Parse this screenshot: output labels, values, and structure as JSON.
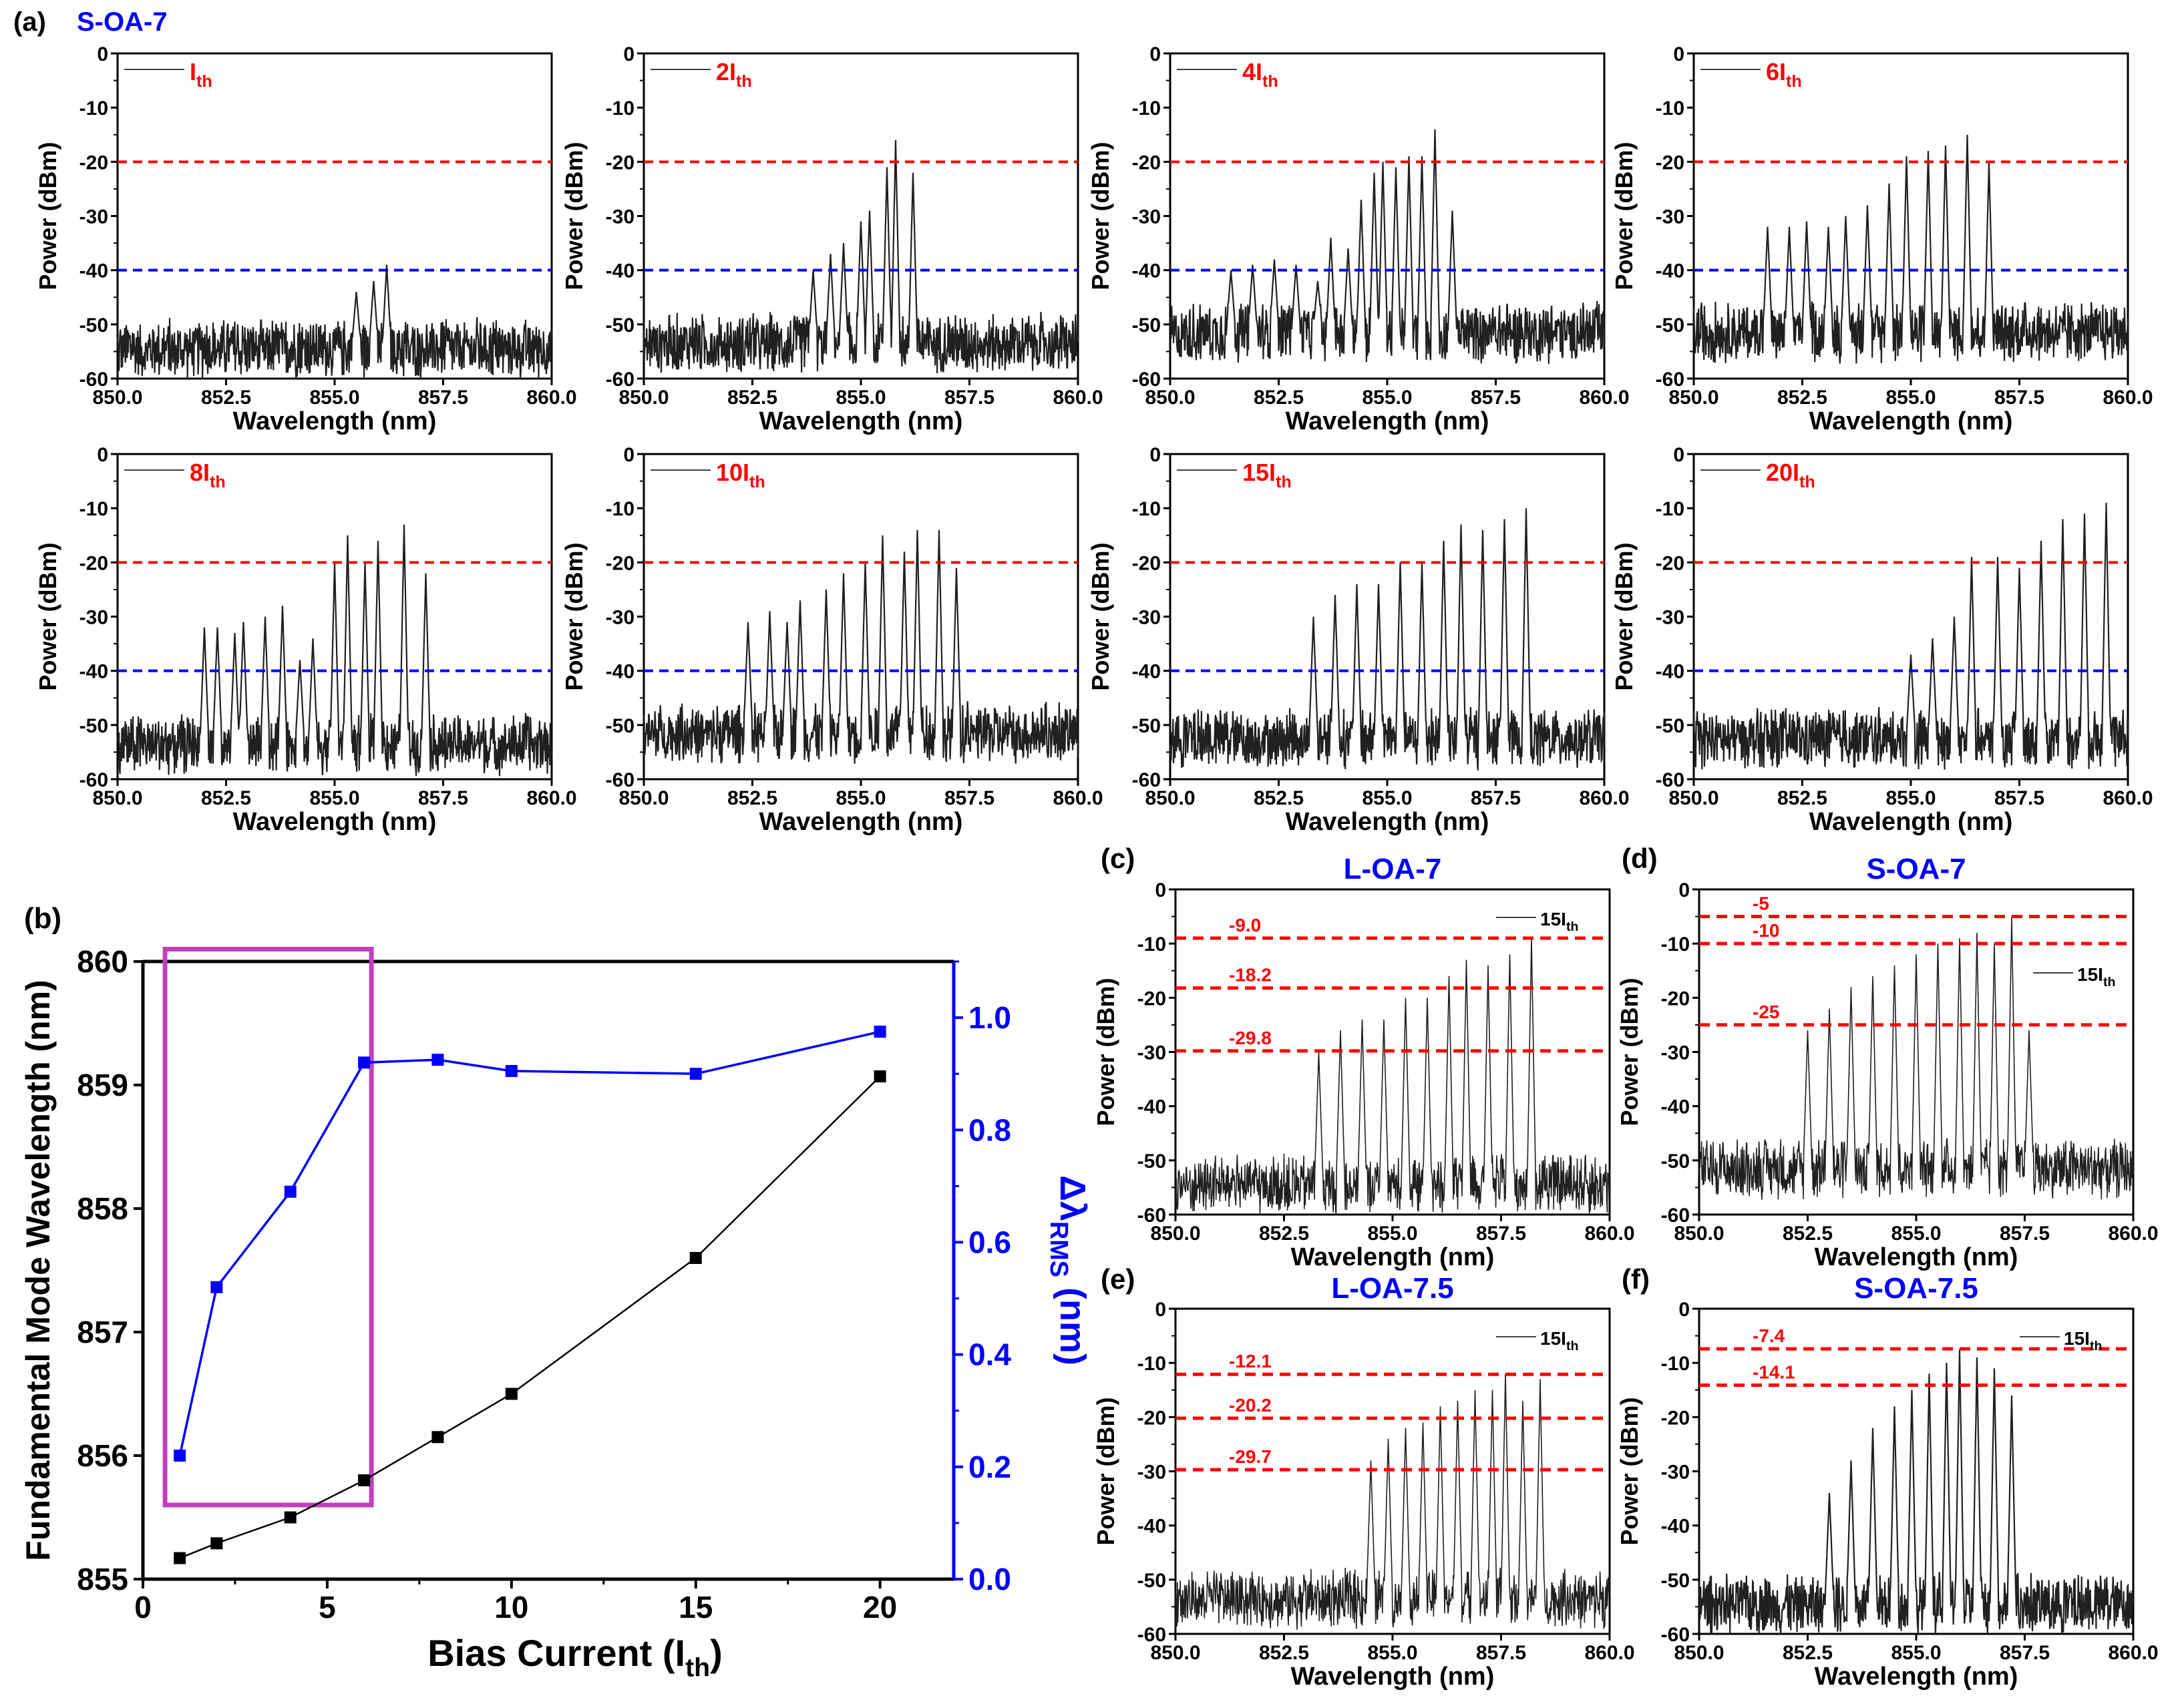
{
  "figure": {
    "colors": {
      "red": "#ff0000",
      "blue": "#0000ff",
      "black": "#000000",
      "magenta": "#c040c0",
      "trace": "#202020"
    },
    "spectrum_axes": {
      "xlabel": "Wavelength (nm)",
      "ylabel": "Power (dBm)",
      "xticks": [
        "850.0",
        "852.5",
        "855.0",
        "857.5",
        "860.0"
      ],
      "yticks": [
        "0",
        "-10",
        "-20",
        "-30",
        "-40",
        "-50",
        "-60"
      ],
      "xlim": [
        850,
        860
      ],
      "ylim": [
        -60,
        0
      ]
    }
  },
  "chart_data": [
    {
      "type": "line",
      "panel": "(a)",
      "sample": "S-OA-7",
      "subplots": [
        {
          "label_main": "I",
          "label_sub": "th",
          "series": "Ith",
          "noise_floor": -53,
          "modes": [
            [
              855.5,
              -44
            ],
            [
              855.9,
              -42
            ],
            [
              856.2,
              -39
            ]
          ],
          "ref_lines": [
            -20,
            -40
          ]
        },
        {
          "label_main": "2I",
          "label_sub": "th",
          "series": "2Ith",
          "noise_floor": -52,
          "modes": [
            [
              853.9,
              -40
            ],
            [
              854.3,
              -37
            ],
            [
              854.6,
              -35
            ],
            [
              855.0,
              -31
            ],
            [
              855.2,
              -29
            ],
            [
              855.6,
              -21
            ],
            [
              855.8,
              -16
            ],
            [
              856.2,
              -22
            ]
          ],
          "ref_lines": [
            -20,
            -40
          ]
        },
        {
          "label_main": "4I",
          "label_sub": "th",
          "series": "4Ith",
          "noise_floor": -50,
          "modes": [
            [
              851.4,
              -40
            ],
            [
              851.9,
              -39
            ],
            [
              852.4,
              -38
            ],
            [
              852.9,
              -39
            ],
            [
              853.4,
              -42
            ],
            [
              853.7,
              -34
            ],
            [
              854.1,
              -36
            ],
            [
              854.4,
              -27
            ],
            [
              854.7,
              -22
            ],
            [
              854.9,
              -20
            ],
            [
              855.2,
              -21
            ],
            [
              855.5,
              -19
            ],
            [
              855.8,
              -19
            ],
            [
              856.1,
              -14
            ],
            [
              856.5,
              -29
            ]
          ],
          "ref_lines": [
            -20,
            -40
          ]
        },
        {
          "label_main": "6I",
          "label_sub": "th",
          "series": "6Ith",
          "noise_floor": -50,
          "modes": [
            [
              851.7,
              -32
            ],
            [
              852.2,
              -32
            ],
            [
              852.6,
              -31
            ],
            [
              853.1,
              -32
            ],
            [
              853.5,
              -30
            ],
            [
              854.0,
              -28
            ],
            [
              854.5,
              -24
            ],
            [
              854.9,
              -19
            ],
            [
              855.4,
              -18
            ],
            [
              855.8,
              -17
            ],
            [
              856.3,
              -15
            ],
            [
              856.8,
              -20
            ]
          ],
          "ref_lines": [
            -20,
            -40
          ]
        },
        {
          "label_main": "8I",
          "label_sub": "th",
          "series": "8Ith",
          "noise_floor": -52,
          "modes": [
            [
              852.0,
              -32
            ],
            [
              852.3,
              -32
            ],
            [
              852.7,
              -33
            ],
            [
              852.9,
              -31
            ],
            [
              853.4,
              -30
            ],
            [
              853.8,
              -28
            ],
            [
              854.2,
              -38
            ],
            [
              854.5,
              -34
            ],
            [
              855.0,
              -20
            ],
            [
              855.3,
              -15
            ],
            [
              855.7,
              -20
            ],
            [
              856.0,
              -16
            ],
            [
              856.6,
              -13
            ],
            [
              857.1,
              -22
            ]
          ],
          "ref_lines": [
            -20,
            -40
          ]
        },
        {
          "label_main": "10I",
          "label_sub": "th",
          "series": "10Ith",
          "noise_floor": -50,
          "modes": [
            [
              852.4,
              -31
            ],
            [
              852.9,
              -29
            ],
            [
              853.3,
              -31
            ],
            [
              853.6,
              -27
            ],
            [
              854.2,
              -25
            ],
            [
              854.6,
              -22
            ],
            [
              855.1,
              -20
            ],
            [
              855.5,
              -15
            ],
            [
              856.0,
              -18
            ],
            [
              856.3,
              -14
            ],
            [
              856.8,
              -14
            ],
            [
              857.2,
              -21
            ]
          ],
          "ref_lines": [
            -20,
            -40
          ]
        },
        {
          "label_main": "15I",
          "label_sub": "th",
          "series": "15Ith",
          "noise_floor": -51,
          "modes": [
            [
              853.3,
              -30
            ],
            [
              853.8,
              -26
            ],
            [
              854.3,
              -24
            ],
            [
              854.8,
              -24
            ],
            [
              855.3,
              -20
            ],
            [
              855.8,
              -20
            ],
            [
              856.3,
              -16
            ],
            [
              856.7,
              -13
            ],
            [
              857.2,
              -14
            ],
            [
              857.7,
              -12
            ],
            [
              858.2,
              -10
            ]
          ],
          "ref_lines": [
            -20,
            -40
          ]
        },
        {
          "label_main": "20I",
          "label_sub": "th",
          "series": "20Ith",
          "noise_floor": -51,
          "modes": [
            [
              855.0,
              -37
            ],
            [
              855.5,
              -34
            ],
            [
              856.0,
              -30
            ],
            [
              856.4,
              -19
            ],
            [
              857.0,
              -19
            ],
            [
              857.5,
              -21
            ],
            [
              858.0,
              -16
            ],
            [
              858.5,
              -12
            ],
            [
              859.0,
              -11
            ],
            [
              859.5,
              -9
            ]
          ],
          "ref_lines": [
            -20,
            -40
          ]
        }
      ]
    },
    {
      "type": "line",
      "panel": "(b)",
      "xlabel_main": "Bias Current (I",
      "xlabel_sub": "th",
      "xlabel_close": ")",
      "ylabel_left": "Fundamental Mode Wavelength (nm)",
      "ylabel_right_main": "Δλ",
      "ylabel_right_sub": "RMS",
      "ylabel_right_unit": " (nm)",
      "xlim": [
        0,
        22
      ],
      "ylim_left": [
        855,
        860
      ],
      "ylim_right": [
        0.0,
        1.1
      ],
      "xticks": [
        "0",
        "5",
        "10",
        "15",
        "20"
      ],
      "yticks_left": [
        "855",
        "856",
        "857",
        "858",
        "859",
        "860"
      ],
      "yticks_right": [
        "0.0",
        "0.2",
        "0.4",
        "0.6",
        "0.8",
        "1.0"
      ],
      "highlight_box": {
        "x_range": [
          0.6,
          6.2
        ],
        "y_range": [
          855.6,
          860.1
        ]
      },
      "series": [
        {
          "name": "Fundamental mode wavelength",
          "axis": "left",
          "x": [
            1,
            2,
            4,
            6,
            8,
            10,
            15,
            20
          ],
          "values": [
            855.17,
            855.29,
            855.5,
            855.8,
            856.15,
            856.5,
            857.6,
            859.07
          ]
        },
        {
          "name": "Δλ RMS",
          "axis": "right",
          "x": [
            1,
            2,
            4,
            6,
            8,
            10,
            15,
            20
          ],
          "values": [
            0.22,
            0.52,
            0.69,
            0.92,
            0.925,
            0.905,
            0.9,
            0.975
          ]
        }
      ]
    },
    {
      "type": "line",
      "panel": "(c)",
      "sample": "L-OA-7",
      "legend_main": "15I",
      "legend_sub": "th",
      "noise_floor": -53,
      "modes": [
        [
          853.3,
          -30
        ],
        [
          853.8,
          -26
        ],
        [
          854.3,
          -24
        ],
        [
          854.8,
          -24
        ],
        [
          855.3,
          -20
        ],
        [
          855.8,
          -20
        ],
        [
          856.3,
          -16
        ],
        [
          856.7,
          -13
        ],
        [
          857.2,
          -14
        ],
        [
          857.7,
          -12
        ],
        [
          858.2,
          -9
        ]
      ],
      "ref_lines": [
        {
          "value": -9.0,
          "label": "-9.0"
        },
        {
          "value": -18.2,
          "label": "-18.2"
        },
        {
          "value": -29.8,
          "label": "-29.8"
        }
      ]
    },
    {
      "type": "line",
      "panel": "(d)",
      "sample": "S-OA-7",
      "legend_main": "15I",
      "legend_sub": "th",
      "noise_floor": -50,
      "modes": [
        [
          852.5,
          -26
        ],
        [
          853.0,
          -22
        ],
        [
          853.5,
          -18
        ],
        [
          854.0,
          -16
        ],
        [
          854.5,
          -14
        ],
        [
          855.0,
          -12
        ],
        [
          855.5,
          -10
        ],
        [
          856.0,
          -9
        ],
        [
          856.4,
          -8
        ],
        [
          856.8,
          -10
        ],
        [
          857.2,
          -5
        ],
        [
          857.6,
          -26
        ]
      ],
      "ref_lines": [
        {
          "value": -5,
          "label": "-5"
        },
        {
          "value": -10,
          "label": "-10"
        },
        {
          "value": -25,
          "label": "-25"
        }
      ]
    },
    {
      "type": "line",
      "panel": "(e)",
      "sample": "L-OA-7.5",
      "legend_main": "15I",
      "legend_sub": "th",
      "noise_floor": -52,
      "modes": [
        [
          854.5,
          -28
        ],
        [
          854.9,
          -24
        ],
        [
          855.3,
          -22
        ],
        [
          855.7,
          -21
        ],
        [
          856.1,
          -18
        ],
        [
          856.5,
          -17
        ],
        [
          856.9,
          -15
        ],
        [
          857.3,
          -15
        ],
        [
          857.6,
          -12
        ],
        [
          858.0,
          -17
        ],
        [
          858.4,
          -13
        ]
      ],
      "ref_lines": [
        {
          "value": -12.1,
          "label": "-12.1"
        },
        {
          "value": -20.2,
          "label": "-20.2"
        },
        {
          "value": -29.7,
          "label": "-29.7"
        }
      ]
    },
    {
      "type": "line",
      "panel": "(f)",
      "sample": "S-OA-7.5",
      "legend_main": "15I",
      "legend_sub": "th",
      "noise_floor": -53,
      "modes": [
        [
          853.0,
          -34
        ],
        [
          853.5,
          -28
        ],
        [
          854.0,
          -22
        ],
        [
          854.5,
          -18
        ],
        [
          854.9,
          -15
        ],
        [
          855.3,
          -12
        ],
        [
          855.7,
          -10
        ],
        [
          856.0,
          -7.5
        ],
        [
          856.4,
          -9
        ],
        [
          856.8,
          -11
        ],
        [
          857.2,
          -16
        ]
      ],
      "ref_lines": [
        {
          "value": -7.4,
          "label": "-7.4"
        },
        {
          "value": -14.1,
          "label": "-14.1"
        }
      ]
    }
  ]
}
